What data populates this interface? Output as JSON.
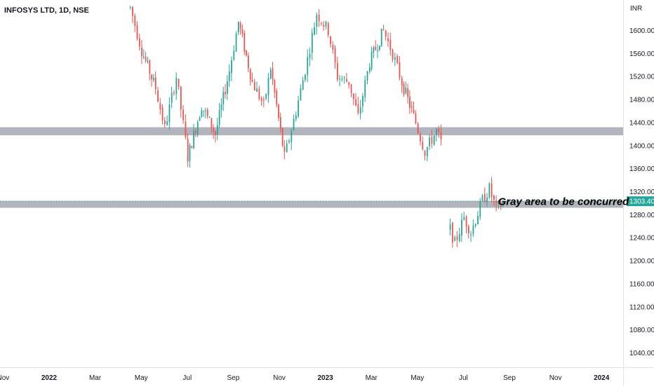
{
  "chart_data": {
    "type": "candlestick",
    "title": "INFOSYS LTD, 1D, NSE",
    "currency_label": "INR",
    "y_ticks": [
      1600,
      1560,
      1520,
      1480,
      1440,
      1400,
      1360,
      1320,
      1280,
      1240,
      1200,
      1160,
      1120,
      1080,
      1040
    ],
    "y_tick_labels": [
      "1600.00",
      "1560.00",
      "1520.00",
      "1480.00",
      "1440.00",
      "1400.00",
      "1360.00",
      "1320.00",
      "1280.00",
      "1240.00",
      "1200.00",
      "1160.00",
      "1120.00",
      "1080.00",
      "1040.00"
    ],
    "ylim": [
      1015,
      1653
    ],
    "x_ticks": [
      {
        "label": "Nov",
        "month": -2,
        "bold": false
      },
      {
        "label": "2022",
        "month": 0,
        "bold": true
      },
      {
        "label": "Mar",
        "month": 2,
        "bold": false
      },
      {
        "label": "May",
        "month": 4,
        "bold": false
      },
      {
        "label": "Jul",
        "month": 6,
        "bold": false
      },
      {
        "label": "Sep",
        "month": 8,
        "bold": false
      },
      {
        "label": "Nov",
        "month": 10,
        "bold": false
      },
      {
        "label": "2023",
        "month": 12,
        "bold": true
      },
      {
        "label": "Mar",
        "month": 14,
        "bold": false
      },
      {
        "label": "May",
        "month": 16,
        "bold": false
      },
      {
        "label": "Jul",
        "month": 18,
        "bold": false
      },
      {
        "label": "Sep",
        "month": 20,
        "bold": false
      },
      {
        "label": "Nov",
        "month": 22,
        "bold": false
      },
      {
        "label": "2024",
        "month": 24,
        "bold": true
      }
    ],
    "last_price": 1303.4,
    "last_price_label": "1303.40",
    "zones": [
      {
        "low": 1418,
        "high": 1432,
        "color": "#b2b5be"
      },
      {
        "low": 1292,
        "high": 1304,
        "color": "#b2b5be"
      }
    ],
    "annotation": "Gray area to be concurred",
    "annotation_price": 1298,
    "annotation_month": 19.5,
    "colors": {
      "up": "#26a69a",
      "down": "#ef5350",
      "price_line": "#26a69a"
    },
    "path_points": [
      {
        "month": 3.5,
        "price": 1640
      },
      {
        "month": 4.0,
        "price": 1565
      },
      {
        "month": 4.6,
        "price": 1500
      },
      {
        "month": 5.0,
        "price": 1430
      },
      {
        "month": 5.5,
        "price": 1520
      },
      {
        "month": 6.0,
        "price": 1380
      },
      {
        "month": 6.6,
        "price": 1470
      },
      {
        "month": 7.2,
        "price": 1420
      },
      {
        "month": 7.8,
        "price": 1530
      },
      {
        "month": 8.2,
        "price": 1615
      },
      {
        "month": 8.8,
        "price": 1510
      },
      {
        "month": 9.3,
        "price": 1470
      },
      {
        "month": 9.6,
        "price": 1535
      },
      {
        "month": 10.2,
        "price": 1380
      },
      {
        "month": 10.7,
        "price": 1460
      },
      {
        "month": 11.2,
        "price": 1550
      },
      {
        "month": 11.6,
        "price": 1630
      },
      {
        "month": 12.1,
        "price": 1600
      },
      {
        "month": 12.5,
        "price": 1520
      },
      {
        "month": 13.0,
        "price": 1510
      },
      {
        "month": 13.4,
        "price": 1450
      },
      {
        "month": 13.9,
        "price": 1545
      },
      {
        "month": 14.5,
        "price": 1600
      },
      {
        "month": 14.9,
        "price": 1560
      },
      {
        "month": 15.3,
        "price": 1510
      },
      {
        "month": 15.9,
        "price": 1440
      },
      {
        "month": 16.3,
        "price": 1390
      },
      {
        "month": 16.8,
        "price": 1425
      },
      {
        "month": 17.1,
        "price": 1395
      },
      {
        "month": 17.35,
        "price": "gap"
      },
      {
        "month": 17.4,
        "price": 1255
      },
      {
        "month": 17.6,
        "price": 1230
      },
      {
        "month": 18.0,
        "price": 1275
      },
      {
        "month": 18.3,
        "price": 1250
      },
      {
        "month": 18.8,
        "price": 1305
      },
      {
        "month": 19.1,
        "price": 1325
      },
      {
        "month": 19.4,
        "price": 1290
      },
      {
        "month": 19.8,
        "price": 1303
      }
    ]
  }
}
